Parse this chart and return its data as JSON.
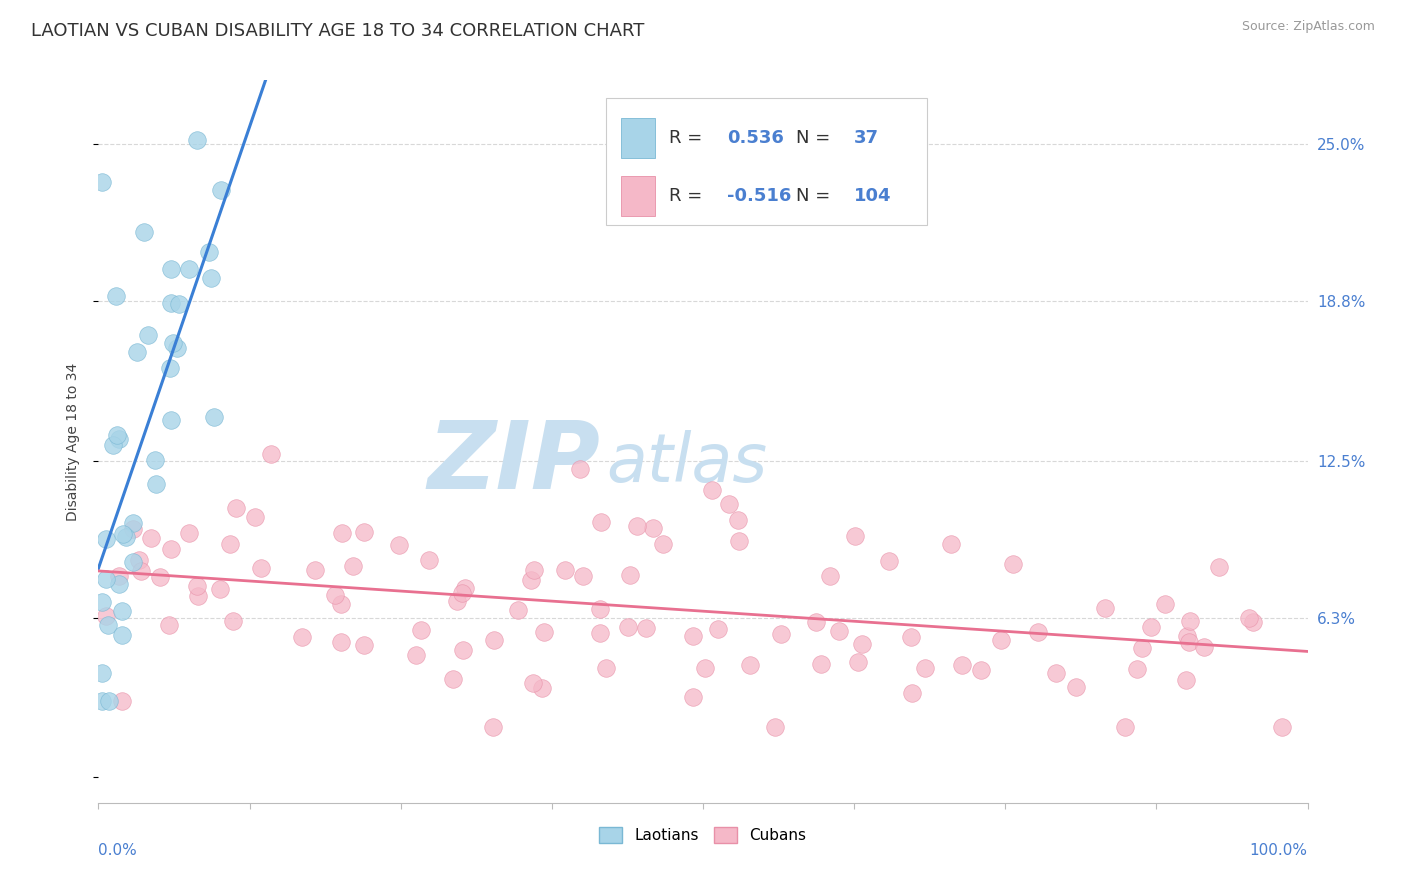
{
  "title": "LAOTIAN VS CUBAN DISABILITY AGE 18 TO 34 CORRELATION CHART",
  "source": "Source: ZipAtlas.com",
  "ylabel": "Disability Age 18 to 34",
  "yticks": [
    0.0,
    0.063,
    0.125,
    0.188,
    0.25
  ],
  "ytick_labels_right": [
    "",
    "6.3%",
    "12.5%",
    "18.8%",
    "25.0%"
  ],
  "xlim": [
    0.0,
    1.0
  ],
  "ylim": [
    -0.01,
    0.275
  ],
  "laotian_color": "#a8d4e8",
  "laotian_edge": "#7ab8d4",
  "cuban_color": "#f5b8c8",
  "cuban_edge": "#e890a8",
  "trend_blue": "#3a7fd5",
  "trend_pink": "#e87090",
  "R_laotian": "0.536",
  "N_laotian": "37",
  "R_cuban": "-0.516",
  "N_cuban": "104",
  "background_color": "#ffffff",
  "grid_color": "#d8d8d8",
  "watermark_zip": "ZIP",
  "watermark_atlas": "atlas",
  "watermark_color": "#c8dff0",
  "title_fontsize": 13,
  "axis_label_fontsize": 10,
  "tick_fontsize": 11,
  "legend_fontsize": 13,
  "tick_color": "#4a7fd0"
}
